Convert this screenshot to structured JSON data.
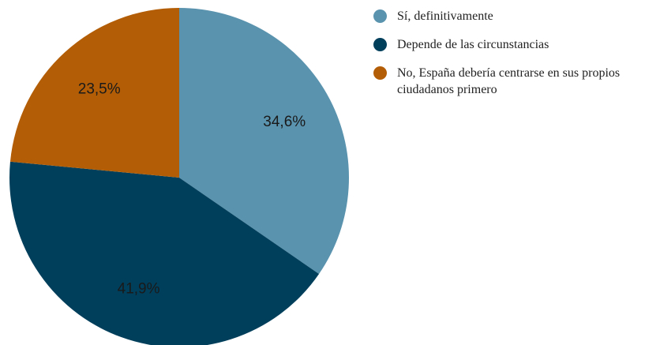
{
  "chart_data": {
    "type": "pie",
    "categories": [
      "Sí, definitivamente",
      "Depende de las circunstancias",
      "No, España debería centrarse en sus propios ciudadanos primero"
    ],
    "values": [
      34.6,
      41.9,
      23.5
    ],
    "value_labels": [
      "34,6%",
      "41,9%",
      "23,5%"
    ],
    "colors": [
      "#5a93ae",
      "#003f5c",
      "#b35e06"
    ],
    "legend": "right"
  }
}
